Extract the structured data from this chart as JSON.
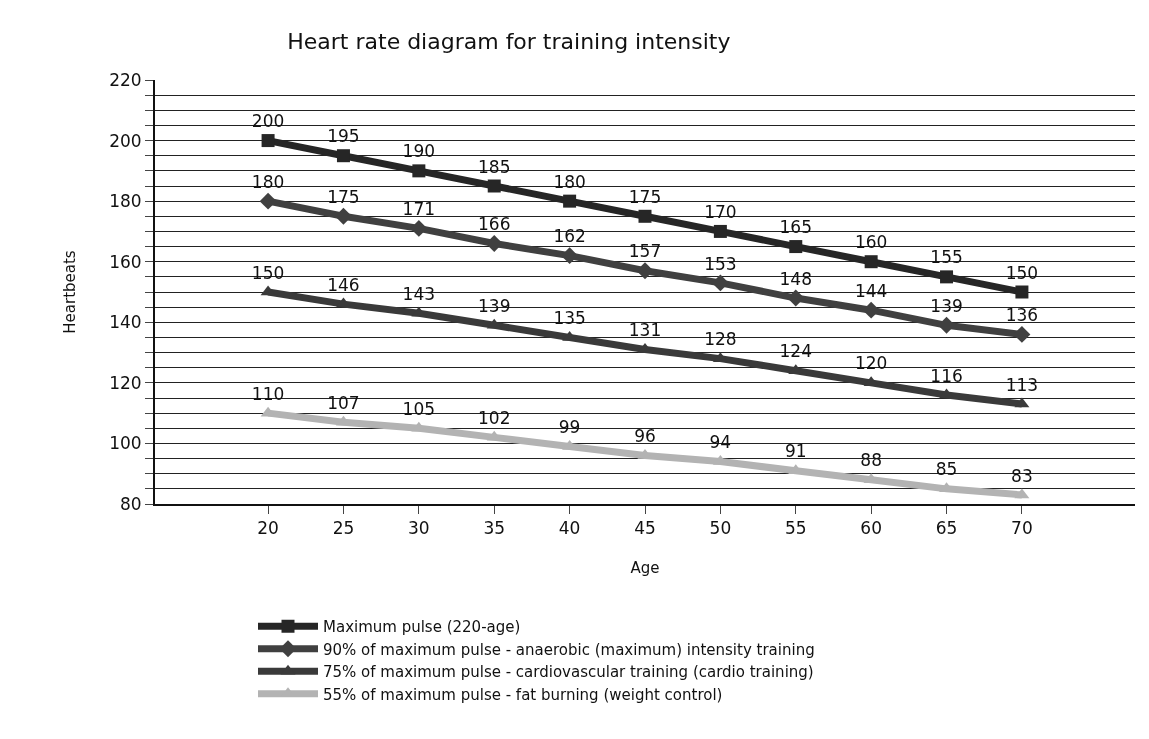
{
  "chart_data": {
    "type": "line",
    "title": "Heart rate diagram for training intensity",
    "xlabel": "Age",
    "ylabel": "Heartbeats",
    "categories": [
      "20",
      "25",
      "30",
      "35",
      "40",
      "45",
      "50",
      "55",
      "60",
      "65",
      "70"
    ],
    "series": [
      {
        "name": "Maximum pulse (220-age)",
        "color": "#262626",
        "marker": "square",
        "values": [
          200,
          195,
          190,
          185,
          180,
          175,
          170,
          165,
          160,
          155,
          150
        ]
      },
      {
        "name": "90% of maximum pulse - anaerobic (maximum) intensity training",
        "color": "#404040",
        "marker": "diamond",
        "values": [
          180,
          175,
          171,
          166,
          162,
          157,
          153,
          148,
          144,
          139,
          136
        ]
      },
      {
        "name": "75% of maximum pulse - cardiovascular training (cardio training)",
        "color": "#3a3a3a",
        "marker": "triangle",
        "values": [
          150,
          146,
          143,
          139,
          135,
          131,
          128,
          124,
          120,
          116,
          113
        ]
      },
      {
        "name": "55% of maximum pulse - fat burning (weight control)",
        "color": "#b3b3b3",
        "marker": "triangle",
        "values": [
          110,
          107,
          105,
          102,
          99,
          96,
          94,
          91,
          88,
          85,
          83
        ]
      }
    ],
    "ylim": [
      80,
      220
    ],
    "yticks": [
      80,
      {
        "value": 85,
        "label": null
      },
      {
        "value": 90,
        "label": null
      },
      {
        "value": 95,
        "label": null
      },
      100,
      {
        "value": 105,
        "label": null
      },
      {
        "value": 110,
        "label": null
      },
      {
        "value": 115,
        "label": null
      },
      120,
      {
        "value": 125,
        "label": null
      },
      {
        "value": 130,
        "label": null
      },
      {
        "value": 135,
        "label": null
      },
      140,
      {
        "value": 145,
        "label": null
      },
      {
        "value": 150,
        "label": null
      },
      {
        "value": 155,
        "label": null
      },
      160,
      {
        "value": 165,
        "label": null
      },
      {
        "value": 170,
        "label": null
      },
      {
        "value": 175,
        "label": null
      },
      180,
      {
        "value": 185,
        "label": null
      },
      {
        "value": 190,
        "label": null
      },
      {
        "value": 195,
        "label": null
      },
      200,
      {
        "value": 205,
        "label": null
      },
      {
        "value": 210,
        "label": null
      },
      {
        "value": 215,
        "label": null
      },
      220
    ],
    "grid": "y",
    "legend": "bottom",
    "data_labels": true,
    "line_style": "solid"
  }
}
